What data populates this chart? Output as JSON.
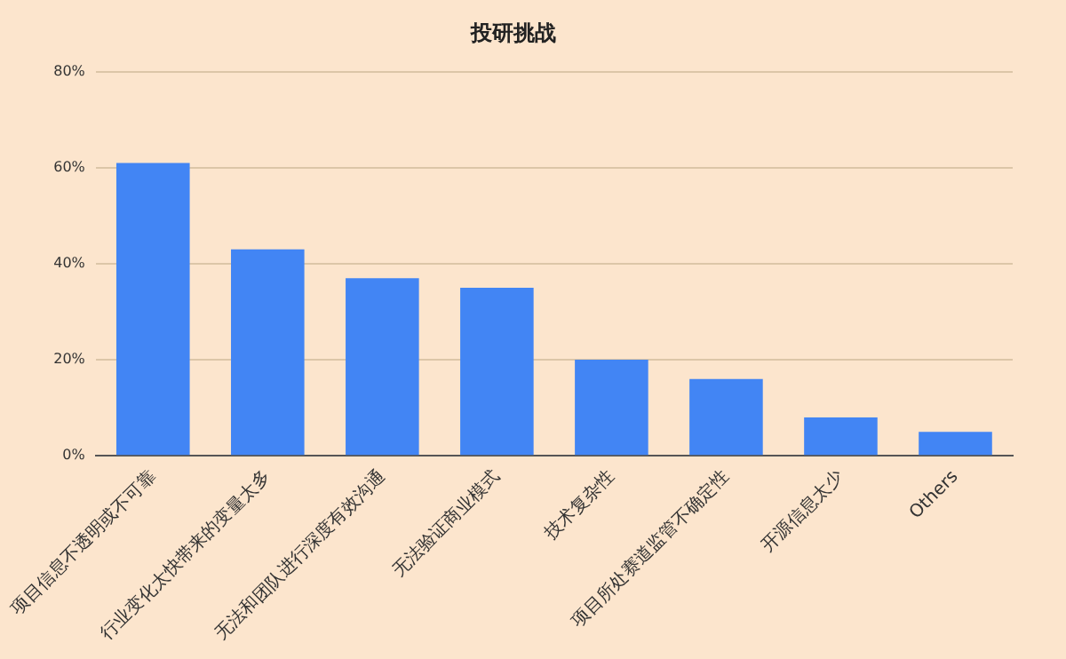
{
  "chart_data": {
    "type": "bar",
    "title": "投研挑战",
    "categories": [
      "项目信息不透明或不可靠",
      "行业变化太快带来的变量太多",
      "无法和团队进行深度有效沟通",
      "无法验证商业模式",
      "技术复杂性",
      "项目所处赛道监管不确定性",
      "开源信息太少",
      "Others"
    ],
    "values": [
      61,
      43,
      37,
      35,
      20,
      16,
      8,
      5
    ],
    "color": "#4285f4",
    "ylim": [
      0,
      80
    ],
    "yticks": [
      {
        "value": 0,
        "label": "0%"
      },
      {
        "value": 20,
        "label": "20%"
      },
      {
        "value": 40,
        "label": "40%"
      },
      {
        "value": 60,
        "label": "60%"
      },
      {
        "value": 80,
        "label": "80%"
      }
    ],
    "grid": "y",
    "legend": false
  }
}
